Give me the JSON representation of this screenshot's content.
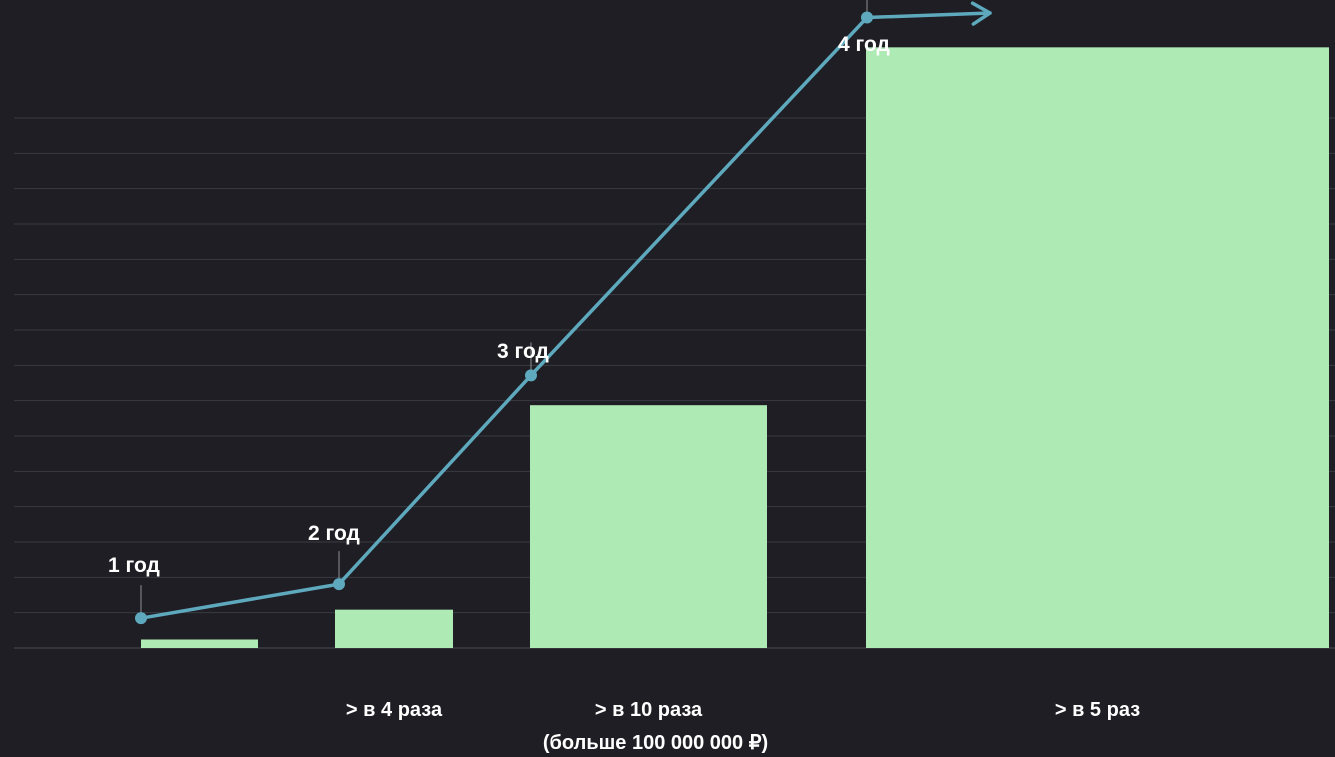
{
  "colors": {
    "background": "#1e1e24",
    "bar": "#aeeab4",
    "trend_line": "#5ea9bd",
    "grid": "#3a3a42",
    "text": "#ffffff"
  },
  "chart_data": {
    "type": "bar",
    "categories": [
      "",
      "> в 4 раза",
      "> в 10 раза",
      "> в 5 раз"
    ],
    "category_sublabels": [
      "",
      "",
      "(больше 100 000 000 ₽)",
      ""
    ],
    "values": [
      2,
      9,
      57,
      141
    ],
    "ylim": [
      0,
      150
    ],
    "grid": true,
    "trend": {
      "type": "line",
      "points": [
        {
          "label": "1 год",
          "value": 7
        },
        {
          "label": "2 год",
          "value": 15
        },
        {
          "label": "3 год",
          "value": 64
        },
        {
          "label": "4 год",
          "value": 148
        }
      ],
      "arrow": true
    }
  }
}
